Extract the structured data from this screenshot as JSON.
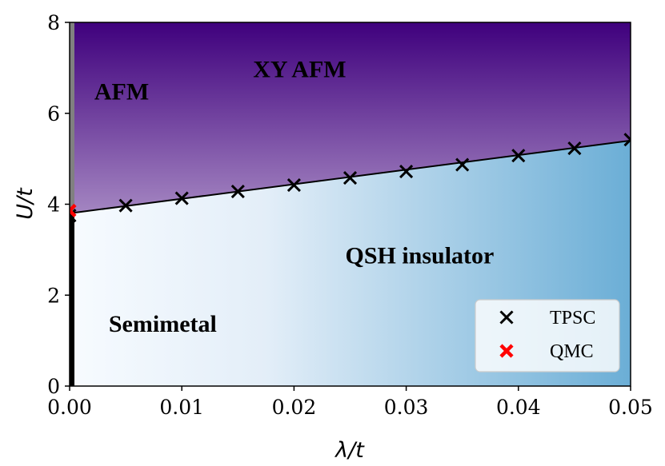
{
  "chart_data": {
    "type": "scatter",
    "title": "",
    "xlabel": "λ/t",
    "ylabel": "U/t",
    "xlim": [
      0.0,
      0.05
    ],
    "ylim": [
      0,
      8
    ],
    "x_ticks": [
      "0.00",
      "0.01",
      "0.02",
      "0.03",
      "0.04",
      "0.05"
    ],
    "y_ticks": [
      "0",
      "2",
      "4",
      "6",
      "8"
    ],
    "grid": false,
    "legend_position": "bottom-right",
    "regions": [
      {
        "label": "AFM",
        "x": 0.0022,
        "y": 6.3
      },
      {
        "label": "XY AFM",
        "x": 0.0205,
        "y": 6.8
      },
      {
        "label": "QSH insulator",
        "x": 0.0312,
        "y": 2.7
      },
      {
        "label": "Semimetal",
        "x": 0.0083,
        "y": 1.2
      }
    ],
    "series": [
      {
        "name": "TPSC",
        "marker": "x",
        "color": "#000000",
        "x": [
          0.0,
          0.005,
          0.01,
          0.015,
          0.02,
          0.025,
          0.03,
          0.035,
          0.04,
          0.045,
          0.05
        ],
        "y": [
          3.75,
          3.97,
          4.13,
          4.28,
          4.42,
          4.58,
          4.72,
          4.87,
          5.07,
          5.23,
          5.42
        ]
      },
      {
        "name": "QMC",
        "marker": "x",
        "color": "#ff0000",
        "x": [
          0.0
        ],
        "y": [
          3.86
        ]
      }
    ],
    "boundary_line": {
      "x": [
        0.0,
        0.05
      ],
      "y": [
        3.8,
        5.4
      ],
      "color": "#000000"
    },
    "colors": {
      "afm_top": "#3f007d",
      "afm_fade": "#ffffff",
      "qsh_left": "#f7fbff",
      "qsh_right": "#6baed6",
      "semimetal_line": "#000000",
      "afm_edge_line": "#808080"
    }
  }
}
